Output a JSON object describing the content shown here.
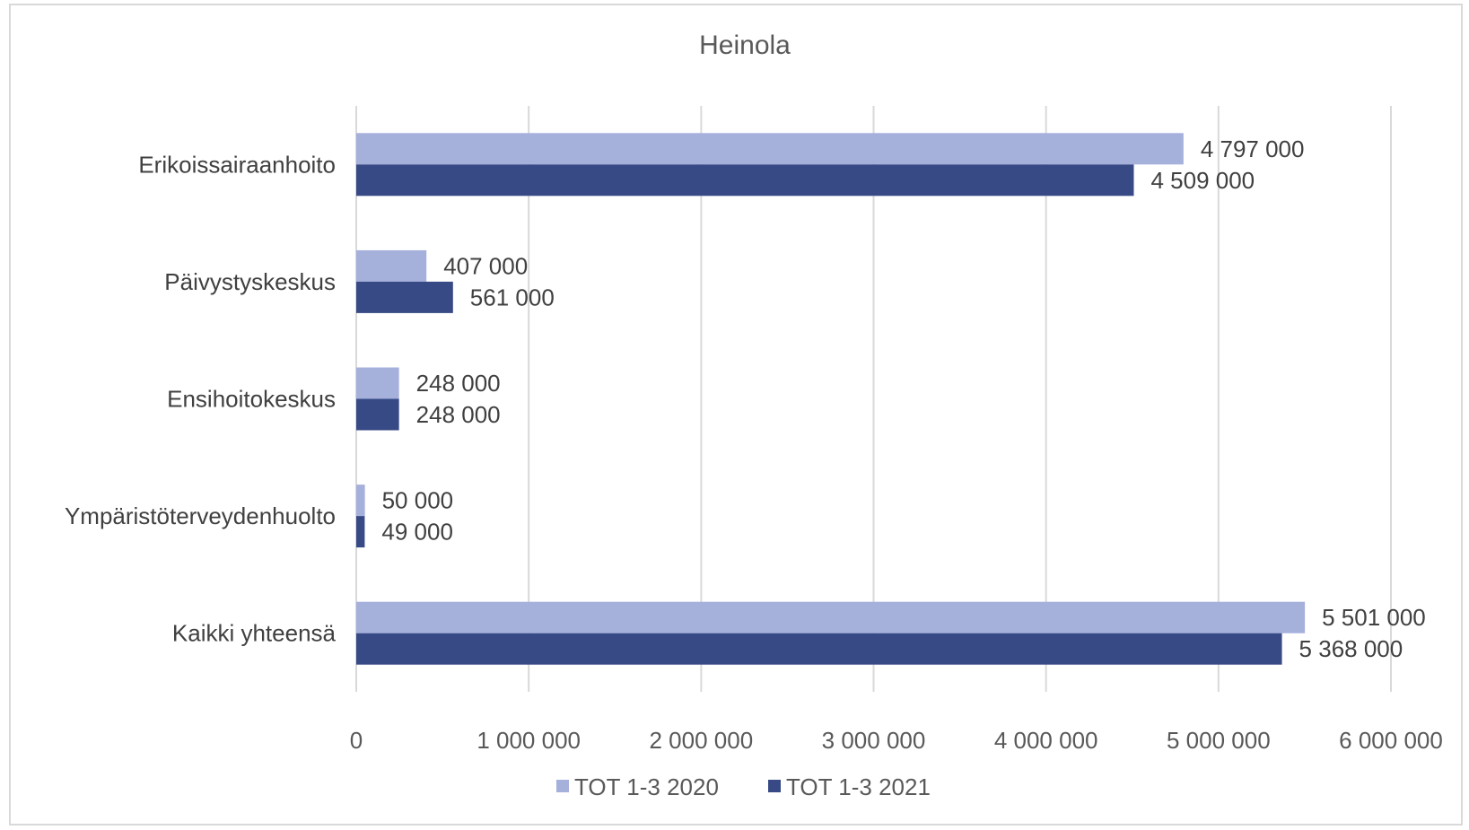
{
  "chart_data": {
    "type": "bar",
    "orientation": "horizontal",
    "title": "Heinola",
    "categories": [
      "Erikoissairaanhoito",
      "Päivystyskeskus",
      "Ensihoitokeskus",
      "Ympäristöterveydenhuolto",
      "Kaikki yhteensä"
    ],
    "series": [
      {
        "name": "TOT 1-3 2020",
        "color": "#a5b0db",
        "values": [
          4797000,
          407000,
          248000,
          50000,
          5501000
        ],
        "labels": [
          "4 797 000",
          "407 000",
          "248 000",
          "50 000",
          "5 501 000"
        ]
      },
      {
        "name": "TOT 1-3 2021",
        "color": "#374a85",
        "values": [
          4509000,
          561000,
          248000,
          49000,
          5368000
        ],
        "labels": [
          "4 509 000",
          "561 000",
          "248 000",
          "49 000",
          "5 368 000"
        ]
      }
    ],
    "xlim": [
      0,
      6000000
    ],
    "xticks": [
      0,
      1000000,
      2000000,
      3000000,
      4000000,
      5000000,
      6000000
    ],
    "xtick_labels": [
      "0",
      "1 000 000",
      "2 000 000",
      "3 000 000",
      "4 000 000",
      "5 000 000",
      "6 000 000"
    ],
    "grid": true,
    "gridline_color": "#d9d9d9",
    "legend_position": "bottom"
  }
}
